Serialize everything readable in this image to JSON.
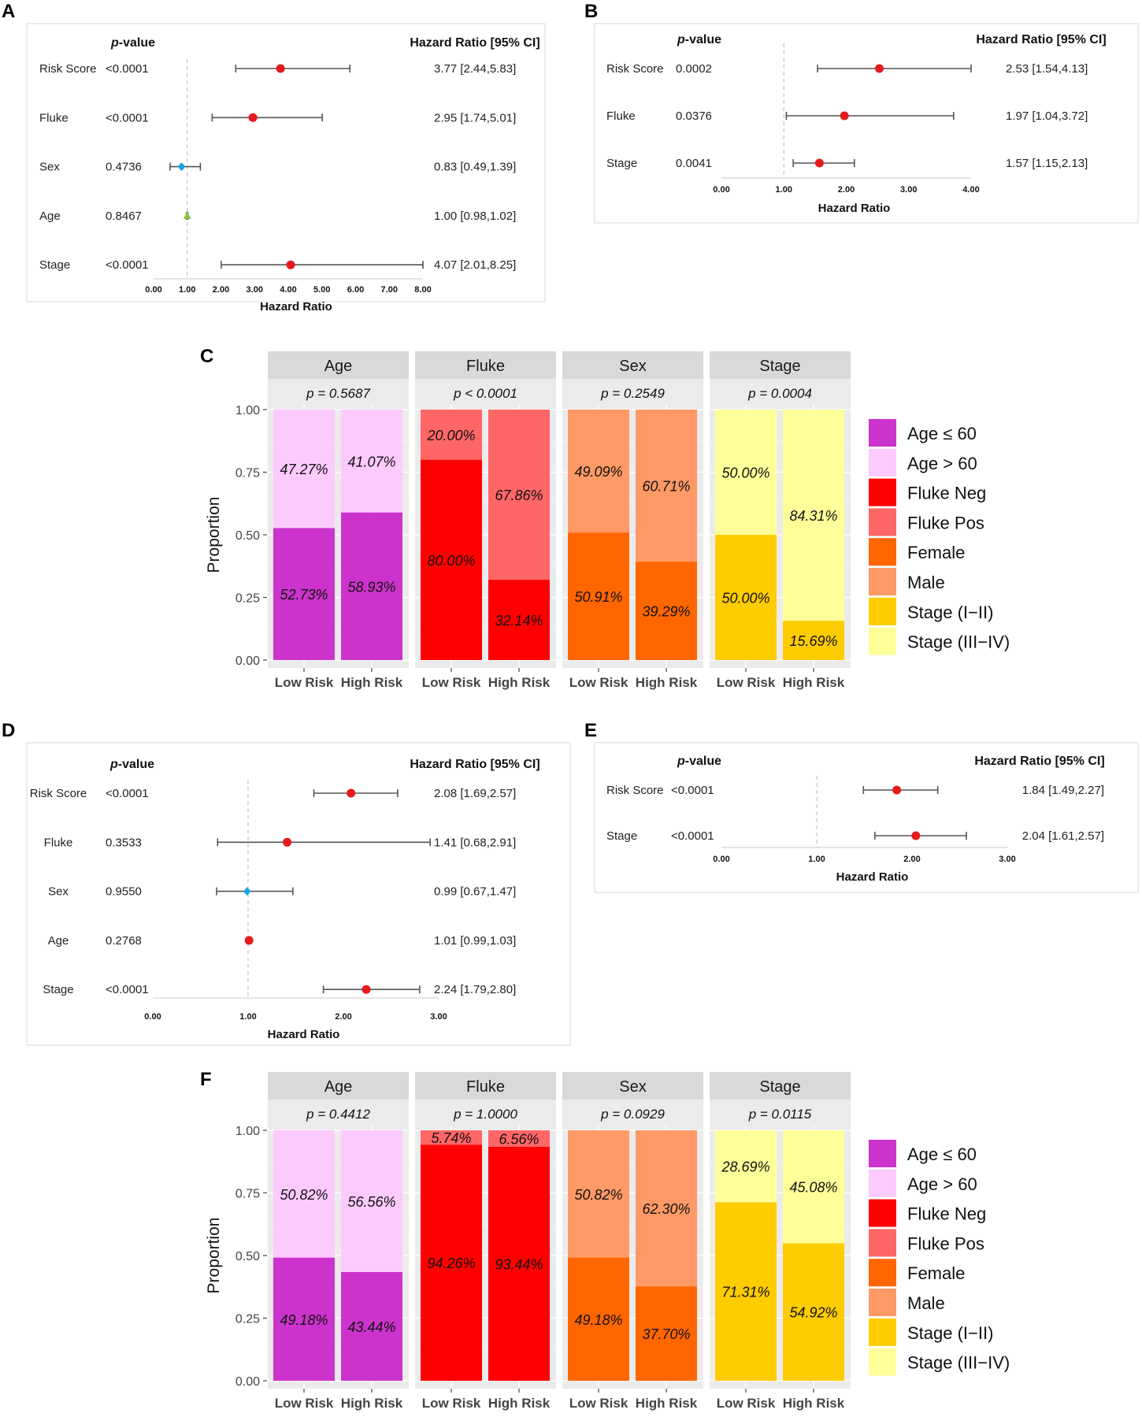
{
  "panel_labels": {
    "A": "A",
    "B": "B",
    "C": "C",
    "D": "D",
    "E": "E",
    "F": "F"
  },
  "colors": {
    "point_red": "#e41a1c",
    "point_blue": "#1ba3e0",
    "point_green": "#8bc34a",
    "age_le60": "#cc33cc",
    "age_gt60": "#fccafc",
    "fluke_neg": "#ff0000",
    "fluke_pos": "#ff6666",
    "female": "#ff6600",
    "male": "#ff9966",
    "stage_i_ii": "#ffcc00",
    "stage_iii_iv": "#ffff99"
  },
  "chart_data": [
    {
      "panel": "A",
      "type": "forest",
      "pvalue_header": "p-value",
      "hr_header": "Hazard Ratio [95% CI]",
      "xlabel": "Hazard Ratio",
      "xlim": [
        0,
        8
      ],
      "ticks": [
        "0.00",
        "1.00",
        "2.00",
        "3.00",
        "4.00",
        "5.00",
        "6.00",
        "7.00",
        "8.00"
      ],
      "reference": 1,
      "rows": [
        {
          "label": "Risk Score",
          "pvalue": "<0.0001",
          "hr": 3.77,
          "lo": 2.44,
          "hi": 5.83,
          "text": "3.77 [2.44,5.83]",
          "marker": "circle",
          "color": "#e41a1c"
        },
        {
          "label": "Fluke",
          "pvalue": "<0.0001",
          "hr": 2.95,
          "lo": 1.74,
          "hi": 5.01,
          "text": "2.95 [1.74,5.01]",
          "marker": "circle",
          "color": "#e41a1c"
        },
        {
          "label": "Sex",
          "pvalue": "0.4736",
          "hr": 0.83,
          "lo": 0.49,
          "hi": 1.39,
          "text": "0.83 [0.49,1.39]",
          "marker": "diamond",
          "color": "#1ba3e0"
        },
        {
          "label": "Age",
          "pvalue": "0.8467",
          "hr": 1.0,
          "lo": 0.98,
          "hi": 1.02,
          "text": "1.00 [0.98,1.02]",
          "marker": "triangle",
          "color": "#8bc34a"
        },
        {
          "label": "Stage",
          "pvalue": "<0.0001",
          "hr": 4.07,
          "lo": 2.01,
          "hi": 8.25,
          "text": "4.07 [2.01,8.25]",
          "marker": "circle",
          "color": "#e41a1c"
        }
      ]
    },
    {
      "panel": "B",
      "type": "forest",
      "pvalue_header": "p-value",
      "hr_header": "Hazard Ratio [95% CI]",
      "xlabel": "Hazard Ratio",
      "xlim": [
        0,
        4
      ],
      "ticks": [
        "0.00",
        "1.00",
        "2.00",
        "3.00",
        "4.00"
      ],
      "reference": 1,
      "rows": [
        {
          "label": "Risk Score",
          "pvalue": "0.0002",
          "hr": 2.53,
          "lo": 1.54,
          "hi": 4.13,
          "text": "2.53 [1.54,4.13]",
          "marker": "circle",
          "color": "#e41a1c"
        },
        {
          "label": "Fluke",
          "pvalue": "0.0376",
          "hr": 1.97,
          "lo": 1.04,
          "hi": 3.72,
          "text": "1.97 [1.04,3.72]",
          "marker": "circle",
          "color": "#e41a1c"
        },
        {
          "label": "Stage",
          "pvalue": "0.0041",
          "hr": 1.57,
          "lo": 1.15,
          "hi": 2.13,
          "text": "1.57 [1.15,2.13]",
          "marker": "circle",
          "color": "#e41a1c"
        }
      ]
    },
    {
      "panel": "C",
      "type": "bar",
      "stacked": true,
      "ylabel": "Proportion",
      "ylim": [
        0,
        1
      ],
      "yticks": [
        "0.00",
        "0.25",
        "0.50",
        "0.75",
        "1.00"
      ],
      "categories": [
        "Low Risk",
        "High Risk"
      ],
      "facets": [
        {
          "title": "Age",
          "pvalue": "p = 0.5687",
          "bottom": [
            0.5273,
            0.5893
          ],
          "top": [
            0.4727,
            0.4107
          ],
          "bottom_labels": [
            "52.73%",
            "58.93%"
          ],
          "top_labels": [
            "47.27%",
            "41.07%"
          ],
          "bottom_color": "#cc33cc",
          "top_color": "#fccafc"
        },
        {
          "title": "Fluke",
          "pvalue": "p < 0.0001",
          "bottom": [
            0.8,
            0.3214
          ],
          "top": [
            0.2,
            0.6786
          ],
          "bottom_labels": [
            "80.00%",
            "32.14%"
          ],
          "top_labels": [
            "20.00%",
            "67.86%"
          ],
          "bottom_color": "#ff0000",
          "top_color": "#ff6666"
        },
        {
          "title": "Sex",
          "pvalue": "p = 0.2549",
          "bottom": [
            0.5091,
            0.3929
          ],
          "top": [
            0.4909,
            0.6071
          ],
          "bottom_labels": [
            "50.91%",
            "39.29%"
          ],
          "top_labels": [
            "49.09%",
            "60.71%"
          ],
          "bottom_color": "#ff6600",
          "top_color": "#ff9966"
        },
        {
          "title": "Stage",
          "pvalue": "p = 0.0004",
          "bottom": [
            0.5,
            0.1569
          ],
          "top": [
            0.5,
            0.8431
          ],
          "bottom_labels": [
            "50.00%",
            "15.69%"
          ],
          "top_labels": [
            "50.00%",
            "84.31%"
          ],
          "bottom_color": "#ffcc00",
          "top_color": "#ffff99"
        }
      ],
      "legend": [
        {
          "label": "Age ≤ 60",
          "color": "#cc33cc"
        },
        {
          "label": "Age > 60",
          "color": "#fccafc"
        },
        {
          "label": "Fluke Neg",
          "color": "#ff0000"
        },
        {
          "label": "Fluke Pos",
          "color": "#ff6666"
        },
        {
          "label": "Female",
          "color": "#ff6600"
        },
        {
          "label": "Male",
          "color": "#ff9966"
        },
        {
          "label": "Stage (I−II)",
          "color": "#ffcc00"
        },
        {
          "label": "Stage (III−IV)",
          "color": "#ffff99"
        }
      ]
    },
    {
      "panel": "D",
      "type": "forest",
      "pvalue_header": "p-value",
      "hr_header": "Hazard Ratio [95% CI]",
      "xlabel": "Hazard Ratio",
      "xlim": [
        0,
        3
      ],
      "ticks": [
        "0.00",
        "1.00",
        "2.00",
        "3.00"
      ],
      "reference": 1,
      "rows": [
        {
          "label": "Risk Score",
          "pvalue": "<0.0001",
          "hr": 2.08,
          "lo": 1.69,
          "hi": 2.57,
          "text": "2.08 [1.69,2.57]",
          "marker": "circle",
          "color": "#e41a1c"
        },
        {
          "label": "Fluke",
          "pvalue": "0.3533",
          "hr": 1.41,
          "lo": 0.68,
          "hi": 2.91,
          "text": "1.41 [0.68,2.91]",
          "marker": "circle",
          "color": "#e41a1c"
        },
        {
          "label": "Sex",
          "pvalue": "0.9550",
          "hr": 0.99,
          "lo": 0.67,
          "hi": 1.47,
          "text": "0.99 [0.67,1.47]",
          "marker": "diamond",
          "color": "#1ba3e0"
        },
        {
          "label": "Age",
          "pvalue": "0.2768",
          "hr": 1.01,
          "lo": 0.99,
          "hi": 1.03,
          "text": "1.01 [0.99,1.03]",
          "marker": "circle",
          "color": "#e41a1c"
        },
        {
          "label": "Stage",
          "pvalue": "<0.0001",
          "hr": 2.24,
          "lo": 1.79,
          "hi": 2.8,
          "text": "2.24 [1.79,2.80]",
          "marker": "circle",
          "color": "#e41a1c"
        }
      ]
    },
    {
      "panel": "E",
      "type": "forest",
      "pvalue_header": "p-value",
      "hr_header": "Hazard Ratio [95% CI]",
      "xlabel": "Hazard Ratio",
      "xlim": [
        0,
        3
      ],
      "ticks": [
        "0.00",
        "1.00",
        "2.00",
        "3.00"
      ],
      "reference": 1,
      "rows": [
        {
          "label": "Risk Score",
          "pvalue": "<0.0001",
          "hr": 1.84,
          "lo": 1.49,
          "hi": 2.27,
          "text": "1.84 [1.49,2.27]",
          "marker": "circle",
          "color": "#e41a1c"
        },
        {
          "label": "Stage",
          "pvalue": "<0.0001",
          "hr": 2.04,
          "lo": 1.61,
          "hi": 2.57,
          "text": "2.04 [1.61,2.57]",
          "marker": "circle",
          "color": "#e41a1c"
        }
      ]
    },
    {
      "panel": "F",
      "type": "bar",
      "stacked": true,
      "ylabel": "Proportion",
      "ylim": [
        0,
        1
      ],
      "yticks": [
        "0.00",
        "0.25",
        "0.50",
        "0.75",
        "1.00"
      ],
      "categories": [
        "Low Risk",
        "High Risk"
      ],
      "facets": [
        {
          "title": "Age",
          "pvalue": "p = 0.4412",
          "bottom": [
            0.4918,
            0.4344
          ],
          "top": [
            0.5082,
            0.5656
          ],
          "bottom_labels": [
            "49.18%",
            "43.44%"
          ],
          "top_labels": [
            "50.82%",
            "56.56%"
          ],
          "bottom_color": "#cc33cc",
          "top_color": "#fccafc"
        },
        {
          "title": "Fluke",
          "pvalue": "p = 1.0000",
          "bottom": [
            0.9426,
            0.9344
          ],
          "top": [
            0.0574,
            0.0656
          ],
          "bottom_labels": [
            "94.26%",
            "93.44%"
          ],
          "top_labels": [
            "5.74%",
            "6.56%"
          ],
          "bottom_color": "#ff0000",
          "top_color": "#ff6666"
        },
        {
          "title": "Sex",
          "pvalue": "p = 0.0929",
          "bottom": [
            0.4918,
            0.377
          ],
          "top": [
            0.5082,
            0.623
          ],
          "bottom_labels": [
            "49.18%",
            "37.70%"
          ],
          "top_labels": [
            "50.82%",
            "62.30%"
          ],
          "bottom_color": "#ff6600",
          "top_color": "#ff9966"
        },
        {
          "title": "Stage",
          "pvalue": "p = 0.0115",
          "bottom": [
            0.7131,
            0.5492
          ],
          "top": [
            0.2869,
            0.4508
          ],
          "bottom_labels": [
            "71.31%",
            "54.92%"
          ],
          "top_labels": [
            "28.69%",
            "45.08%"
          ],
          "bottom_color": "#ffcc00",
          "top_color": "#ffff99"
        }
      ],
      "legend": [
        {
          "label": "Age ≤ 60",
          "color": "#cc33cc"
        },
        {
          "label": "Age > 60",
          "color": "#fccafc"
        },
        {
          "label": "Fluke Neg",
          "color": "#ff0000"
        },
        {
          "label": "Fluke Pos",
          "color": "#ff6666"
        },
        {
          "label": "Female",
          "color": "#ff6600"
        },
        {
          "label": "Male",
          "color": "#ff9966"
        },
        {
          "label": "Stage (I−II)",
          "color": "#ffcc00"
        },
        {
          "label": "Stage (III−IV)",
          "color": "#ffff99"
        }
      ]
    }
  ]
}
